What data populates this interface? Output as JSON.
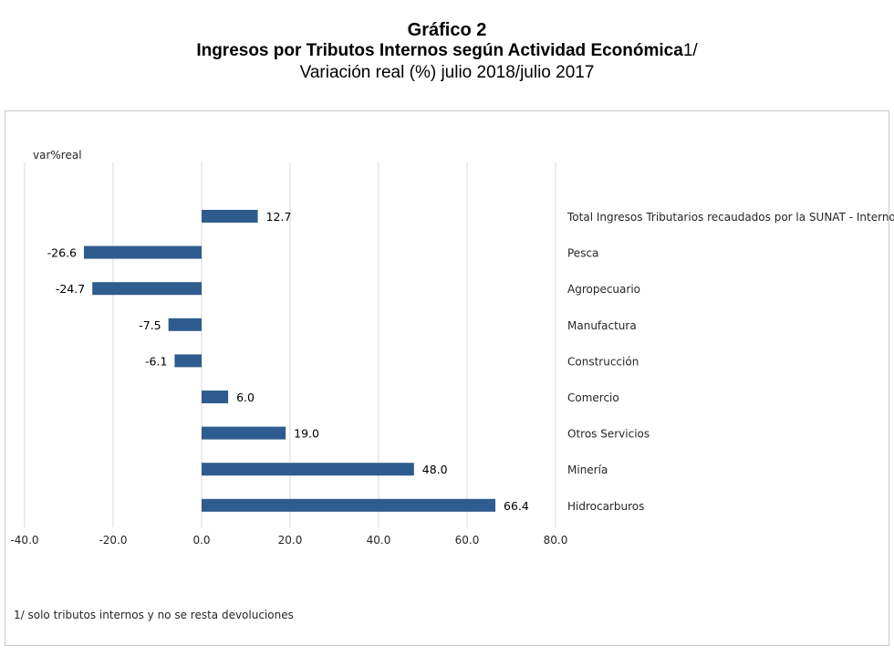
{
  "title": {
    "line1": "Gráfico 2",
    "line2": "Ingresos por Tributos Internos según Actividad Económica",
    "line2_suffix": "1/",
    "line3": "Variación real (%) julio 2018/julio 2017"
  },
  "footnote": "1/ solo tributos internos y no se resta devoluciones",
  "chart_data": {
    "type": "bar",
    "orientation": "horizontal",
    "title": "Ingresos por Tributos Internos según Actividad Económica 1/ - Variación real (%) julio 2018/julio 2017",
    "ylabel": "var%real",
    "xlim": [
      -40,
      80
    ],
    "xticks": [
      -40,
      -20,
      0,
      20,
      40,
      60,
      80
    ],
    "xtick_labels": [
      "-40.0",
      "-20.0",
      "0.0",
      "20.0",
      "40.0",
      "60.0",
      "80.0"
    ],
    "gridlines": "vertical",
    "bar_color": "#2F5C8F",
    "categories": [
      "Total Ingresos Tributarios recaudados por la SUNAT - Internos",
      "Pesca",
      "Agropecuario",
      "Manufactura",
      "Construcción",
      "Comercio",
      "Otros Servicios",
      "Minería",
      "Hidrocarburos"
    ],
    "values": [
      12.7,
      -26.6,
      -24.7,
      -7.5,
      -6.1,
      6.0,
      19.0,
      48.0,
      66.4
    ],
    "value_labels": [
      "12.7",
      "-26.6",
      "-24.7",
      "-7.5",
      "-6.1",
      "6.0",
      "19.0",
      "48.0",
      "66.4"
    ]
  }
}
